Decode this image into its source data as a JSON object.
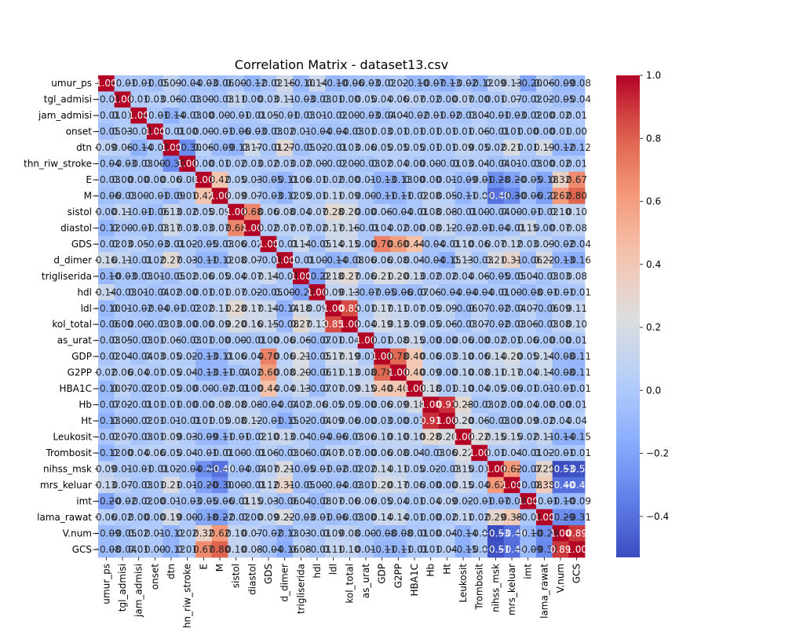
{
  "chart_data": {
    "type": "heatmap",
    "title": "Correlation Matrix - dataset13.csv",
    "labels": [
      "umur_ps",
      "tgl_admisi",
      "jam_admisi",
      "onset",
      "dtn",
      "thn_riw_stroke",
      "E",
      "M",
      "sistol",
      "diastol",
      "GDS",
      "d_dimer",
      "trigliserida",
      "hdl",
      "ldl",
      "kol_total",
      "as_urat",
      "GDP",
      "G2PP",
      "HBA1C",
      "Hb",
      "Ht",
      "Leukosit",
      "Trombosit",
      "nihss_msk",
      "mrs_keluar",
      "imt",
      "lama_rawat",
      "V.num",
      "GCS"
    ],
    "colormap": "coolwarm",
    "vmin": -0.53,
    "vmax": 1.0,
    "colorbar_ticks": [
      "1.0",
      "0.8",
      "0.6",
      "0.4",
      "0.2",
      "0.0",
      "−0.2",
      "−0.4"
    ],
    "matrix": [
      [
        1.0,
        -0.01,
        -0.01,
        -0.05,
        0.09,
        -0.04,
        -0.03,
        -0.06,
        0.0,
        -0.12,
        -0.02,
        0.16,
        -0.1,
        0.14,
        -0.1,
        -0.06,
        -0.03,
        -0.02,
        0.02,
        -0.1,
        -0.07,
        -0.13,
        -0.02,
        -0.12,
        0.09,
        0.13,
        -0.2,
        0.06,
        -0.09,
        -0.08
      ],
      [
        -0.01,
        1.0,
        0.01,
        0.03,
        0.06,
        -0.03,
        0.0,
        -0.03,
        0.11,
        0.0,
        0.03,
        0.11,
        -0.03,
        -0.03,
        0.01,
        0.0,
        0.05,
        0.04,
        0.06,
        0.07,
        0.02,
        0.0,
        0.07,
        0.0,
        0.01,
        0.07,
        -0.02,
        0.02,
        -0.05,
        -0.04
      ],
      [
        -0.01,
        0.01,
        1.0,
        -0.01,
        -0.14,
        -0.03,
        0.0,
        -0.0,
        -0.01,
        -0.01,
        0.05,
        -0.01,
        -0.03,
        0.01,
        -0.02,
        -0.0,
        -0.03,
        -0.04,
        0.04,
        -0.02,
        -0.01,
        -0.02,
        -0.03,
        0.04,
        -0.01,
        -0.03,
        -0.02,
        0.0,
        0.02,
        0.01
      ],
      [
        -0.05,
        0.03,
        -0.01,
        1.0,
        -0.01,
        0.0,
        -0.0,
        -0.01,
        -0.06,
        -0.03,
        -0.03,
        0.02,
        0.01,
        -0.04,
        -0.04,
        -0.03,
        0.01,
        0.03,
        0.01,
        0.01,
        0.01,
        0.01,
        0.01,
        0.06,
        -0.01,
        0.01,
        0.0,
        0.0,
        0.01,
        0.0
      ],
      [
        0.09,
        0.06,
        -0.14,
        -0.01,
        1.0,
        -0.3,
        0.06,
        -0.09,
        -0.13,
        0.17,
        -0.01,
        0.27,
        -0.05,
        0.02,
        -0.01,
        0.03,
        0.06,
        0.05,
        0.05,
        0.05,
        0.01,
        0.01,
        0.09,
        0.05,
        0.02,
        0.21,
        0.01,
        0.19,
        -0.12,
        -0.12
      ],
      [
        -0.04,
        -0.03,
        -0.03,
        0.0,
        -0.3,
        1.0,
        0.0,
        0.01,
        0.02,
        0.03,
        0.02,
        0.03,
        0.02,
        0.0,
        -0.02,
        0.0,
        -0.03,
        0.02,
        0.04,
        0.0,
        -0.0,
        -0.01,
        0.03,
        0.04,
        -0.04,
        0.01,
        -0.03,
        -0.0,
        0.02,
        0.01
      ],
      [
        -0.03,
        0.0,
        0.0,
        -0.0,
        0.06,
        0.0,
        1.0,
        0.42,
        0.05,
        0.03,
        -0.05,
        -0.11,
        0.06,
        0.01,
        0.02,
        0.0,
        0.01,
        -0.13,
        -0.13,
        0.0,
        -0.0,
        0.01,
        -0.09,
        -0.01,
        -0.28,
        -0.2,
        -0.05,
        -0.18,
        0.32,
        0.67
      ],
      [
        -0.06,
        -0.03,
        -0.0,
        -0.01,
        -0.09,
        0.01,
        0.42,
        1.0,
        0.09,
        0.07,
        -0.03,
        -0.12,
        0.05,
        0.01,
        0.11,
        0.09,
        0.0,
        -0.11,
        -0.11,
        -0.02,
        0.08,
        0.05,
        -0.11,
        -0.01,
        -0.4,
        -0.3,
        -0.06,
        -0.22,
        0.62,
        0.8
      ],
      [
        0.0,
        0.11,
        -0.01,
        -0.06,
        0.13,
        0.02,
        0.05,
        0.09,
        1.0,
        0.68,
        0.06,
        0.08,
        0.04,
        0.07,
        0.28,
        0.2,
        -0.0,
        0.06,
        -0.04,
        -0.01,
        0.08,
        0.08,
        -0.01,
        -0.0,
        -0.04,
        -0.0,
        -0.01,
        -0.02,
        0.1,
        0.1
      ],
      [
        -0.12,
        0.0,
        -0.01,
        -0.03,
        0.17,
        0.03,
        0.03,
        0.07,
        0.68,
        1.0,
        0.02,
        0.07,
        0.07,
        0.02,
        0.17,
        0.16,
        -0.01,
        0.04,
        0.02,
        -0.0,
        0.08,
        0.12,
        -0.02,
        -0.01,
        -0.04,
        -0.01,
        0.15,
        -0.0,
        0.07,
        0.08
      ],
      [
        -0.02,
        0.03,
        0.05,
        -0.03,
        -0.01,
        0.02,
        -0.05,
        -0.03,
        0.06,
        0.02,
        1.0,
        -0.01,
        0.14,
        -0.05,
        0.14,
        0.15,
        0.0,
        0.7,
        0.6,
        0.44,
        -0.04,
        -0.01,
        0.1,
        0.06,
        0.07,
        0.12,
        0.03,
        0.09,
        -0.02,
        -0.04
      ],
      [
        0.16,
        0.11,
        -0.01,
        0.02,
        0.27,
        0.03,
        -0.11,
        -0.12,
        0.08,
        0.07,
        -0.01,
        1.0,
        -0.01,
        0.0,
        -0.14,
        -0.08,
        0.06,
        0.06,
        0.08,
        0.04,
        -0.04,
        -0.15,
        0.13,
        -0.03,
        0.21,
        0.31,
        -0.06,
        0.22,
        -0.13,
        -0.16
      ],
      [
        -0.1,
        -0.03,
        -0.03,
        0.01,
        -0.05,
        0.02,
        0.06,
        0.05,
        0.04,
        0.07,
        0.14,
        -0.01,
        1.0,
        -0.22,
        0.18,
        0.27,
        0.06,
        0.21,
        0.2,
        0.13,
        0.02,
        0.02,
        0.04,
        0.06,
        -0.05,
        -0.05,
        0.04,
        -0.03,
        0.03,
        0.08
      ],
      [
        0.14,
        -0.03,
        0.01,
        -0.04,
        0.02,
        0.0,
        0.01,
        0.01,
        0.07,
        0.02,
        -0.05,
        0.0,
        -0.22,
        1.0,
        0.09,
        0.13,
        -0.07,
        -0.05,
        -0.06,
        -0.07,
        0.06,
        -0.04,
        -0.04,
        -0.04,
        -0.01,
        -0.0,
        -0.08,
        -0.01,
        -0.01,
        -0.01
      ],
      [
        -0.1,
        0.01,
        -0.02,
        -0.04,
        -0.01,
        -0.02,
        0.02,
        0.11,
        0.28,
        0.17,
        0.14,
        -0.14,
        0.18,
        0.09,
        1.0,
        0.85,
        0.01,
        0.17,
        0.11,
        0.07,
        0.05,
        0.09,
        -0.06,
        0.07,
        -0.02,
        -0.04,
        0.07,
        -0.06,
        0.09,
        0.11
      ],
      [
        -0.06,
        0.0,
        -0.0,
        -0.03,
        0.03,
        0.0,
        0.0,
        0.09,
        0.2,
        0.16,
        0.15,
        -0.08,
        0.27,
        0.13,
        0.85,
        1.0,
        0.04,
        0.19,
        0.13,
        0.09,
        0.05,
        0.06,
        -0.03,
        0.07,
        -0.02,
        -0.03,
        0.06,
        -0.03,
        0.08,
        0.1
      ],
      [
        -0.03,
        0.05,
        -0.03,
        0.01,
        0.06,
        -0.03,
        0.01,
        0.0,
        -0.0,
        -0.01,
        0.0,
        0.06,
        0.06,
        -0.07,
        0.01,
        0.04,
        1.0,
        0.01,
        0.08,
        0.15,
        -0.0,
        0.0,
        0.06,
        -0.0,
        0.02,
        0.01,
        0.06,
        -0.0,
        0.0,
        0.01
      ],
      [
        -0.02,
        0.04,
        -0.04,
        0.03,
        0.05,
        0.02,
        -0.13,
        -0.11,
        0.06,
        0.04,
        0.7,
        0.06,
        0.21,
        -0.05,
        0.17,
        0.19,
        0.01,
        1.0,
        0.78,
        0.4,
        0.06,
        0.03,
        0.1,
        0.06,
        0.14,
        0.2,
        0.05,
        0.14,
        -0.08,
        -0.11
      ],
      [
        0.02,
        0.06,
        0.04,
        0.01,
        0.05,
        0.04,
        -0.13,
        -0.11,
        -0.04,
        0.02,
        0.6,
        0.08,
        0.2,
        -0.06,
        0.11,
        0.13,
        0.08,
        0.78,
        1.0,
        0.4,
        0.09,
        0.0,
        0.1,
        0.08,
        0.11,
        0.17,
        0.04,
        0.14,
        -0.08,
        -0.11
      ],
      [
        -0.1,
        0.07,
        -0.02,
        0.01,
        0.05,
        0.0,
        0.0,
        -0.02,
        -0.01,
        -0.0,
        0.44,
        0.04,
        0.13,
        -0.07,
        0.07,
        0.09,
        0.15,
        0.4,
        0.4,
        1.0,
        0.18,
        0.01,
        0.1,
        0.04,
        0.05,
        0.06,
        0.01,
        0.01,
        -0.01,
        -0.01
      ],
      [
        -0.07,
        0.02,
        -0.01,
        0.01,
        0.01,
        -0.0,
        -0.0,
        0.08,
        0.08,
        0.08,
        -0.04,
        -0.04,
        0.02,
        0.06,
        0.05,
        0.05,
        -0.0,
        0.06,
        0.09,
        0.18,
        1.0,
        0.91,
        0.28,
        -0.03,
        0.02,
        0.0,
        0.04,
        0.0,
        0.0,
        0.01
      ],
      [
        -0.13,
        0.0,
        -0.02,
        0.01,
        0.01,
        -0.01,
        0.01,
        0.05,
        0.08,
        0.12,
        -0.01,
        -0.15,
        0.02,
        -0.04,
        0.09,
        0.06,
        0.0,
        0.03,
        0.0,
        0.01,
        0.91,
        1.0,
        0.2,
        0.06,
        -0.03,
        0.0,
        0.09,
        0.02,
        0.04,
        0.04
      ],
      [
        -0.02,
        0.07,
        -0.03,
        0.01,
        0.09,
        0.03,
        -0.09,
        -0.11,
        -0.01,
        -0.02,
        0.1,
        0.13,
        0.04,
        -0.04,
        -0.06,
        -0.03,
        0.06,
        0.1,
        0.1,
        0.1,
        0.28,
        0.2,
        1.0,
        0.22,
        0.15,
        0.15,
        0.02,
        0.11,
        -0.14,
        -0.15
      ],
      [
        -0.12,
        0.0,
        0.04,
        0.06,
        0.05,
        0.04,
        -0.01,
        -0.01,
        -0.0,
        -0.01,
        0.06,
        -0.03,
        0.06,
        -0.04,
        0.07,
        0.07,
        -0.0,
        0.06,
        0.08,
        0.04,
        -0.03,
        0.06,
        0.22,
        1.0,
        0.01,
        0.04,
        -0.01,
        0.02,
        -0.01,
        -0.01
      ],
      [
        0.09,
        0.01,
        -0.01,
        -0.01,
        0.02,
        -0.04,
        -0.28,
        -0.4,
        -0.04,
        -0.04,
        0.07,
        0.21,
        -0.05,
        -0.01,
        -0.02,
        -0.02,
        0.02,
        0.14,
        0.11,
        0.05,
        0.02,
        -0.03,
        0.15,
        0.01,
        1.0,
        0.62,
        -0.07,
        0.29,
        -0.53,
        -0.51
      ],
      [
        0.13,
        0.07,
        -0.03,
        0.01,
        0.21,
        0.01,
        -0.2,
        -0.3,
        -0.0,
        -0.01,
        0.12,
        0.31,
        -0.05,
        -0.0,
        -0.04,
        -0.03,
        0.01,
        0.2,
        0.17,
        0.06,
        0.0,
        0.0,
        0.15,
        0.04,
        0.62,
        1.0,
        -0.08,
        0.38,
        -0.4,
        -0.41
      ],
      [
        -0.2,
        -0.02,
        -0.02,
        0.0,
        0.01,
        -0.03,
        -0.05,
        -0.06,
        -0.01,
        0.15,
        0.03,
        -0.06,
        0.04,
        -0.08,
        0.07,
        0.06,
        0.06,
        0.05,
        0.04,
        0.01,
        0.04,
        0.09,
        0.02,
        -0.01,
        -0.07,
        -0.08,
        1.0,
        -0.01,
        -0.1,
        -0.09
      ],
      [
        0.06,
        0.02,
        0.0,
        0.0,
        0.19,
        -0.0,
        -0.18,
        -0.22,
        -0.02,
        -0.0,
        0.09,
        0.22,
        -0.03,
        -0.01,
        -0.06,
        -0.03,
        -0.0,
        0.14,
        0.14,
        0.01,
        0.0,
        0.02,
        0.11,
        0.02,
        0.29,
        0.38,
        -0.01,
        1.0,
        -0.29,
        -0.31
      ],
      [
        -0.09,
        -0.05,
        0.02,
        0.01,
        -0.12,
        0.02,
        0.32,
        0.62,
        0.1,
        0.07,
        -0.02,
        -0.13,
        0.03,
        -0.01,
        0.09,
        0.08,
        0.0,
        -0.08,
        -0.08,
        -0.01,
        0.0,
        0.04,
        -0.14,
        -0.01,
        -0.53,
        -0.4,
        -0.1,
        -0.29,
        1.0,
        0.89
      ],
      [
        -0.08,
        -0.04,
        0.01,
        0.0,
        -0.12,
        0.01,
        0.67,
        0.8,
        0.1,
        0.08,
        -0.04,
        -0.16,
        0.08,
        -0.01,
        0.11,
        0.1,
        0.01,
        -0.11,
        -0.11,
        -0.01,
        0.01,
        0.04,
        -0.15,
        -0.01,
        -0.51,
        -0.41,
        -0.09,
        -0.31,
        0.89,
        1.0
      ]
    ]
  }
}
